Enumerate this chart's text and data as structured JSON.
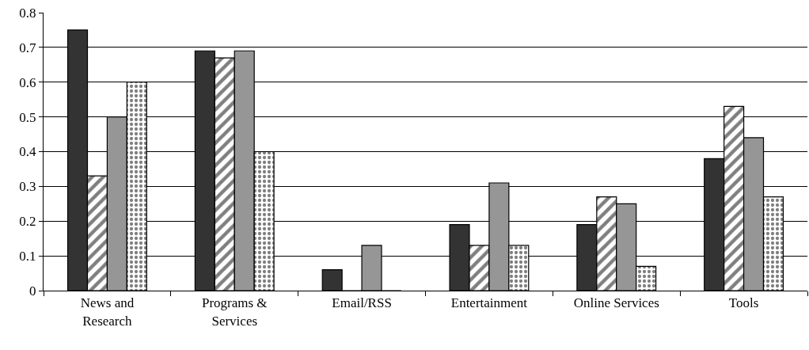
{
  "chart_data": {
    "type": "bar",
    "categories": [
      "News and Research",
      "Programs & Services",
      "Email/RSS",
      "Entertainment",
      "Online Services",
      "Tools"
    ],
    "series": [
      {
        "color": "#333333",
        "values": [
          0.75,
          0.69,
          0.06,
          0.19,
          0.19,
          0.38
        ]
      },
      {
        "color": "#000000",
        "values": [
          0.33,
          0.67,
          0,
          0.13,
          0.27,
          0.53
        ]
      },
      {
        "color": "#969696",
        "values": [
          0.5,
          0.69,
          0.13,
          0.31,
          0.25,
          0.44
        ]
      },
      {
        "color": "#000000",
        "values": [
          0.6,
          0.4,
          0,
          0.13,
          0.07,
          0.27
        ]
      }
    ],
    "ylim": [
      0,
      0.8
    ],
    "yticks": [
      0,
      0.1,
      0.2,
      0.3,
      0.4,
      0.5,
      0.6,
      0.7,
      0.8
    ],
    "grid": "y"
  }
}
